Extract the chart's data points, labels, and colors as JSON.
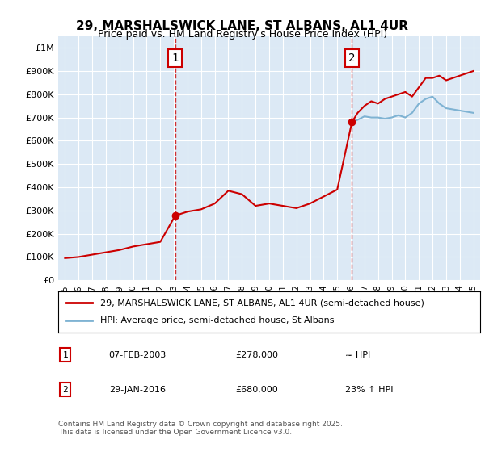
{
  "title": "29, MARSHALSWICK LANE, ST ALBANS, AL1 4UR",
  "subtitle": "Price paid vs. HM Land Registry's House Price Index (HPI)",
  "bg_color": "#dce9f5",
  "plot_bg_color": "#dce9f5",
  "ylim": [
    0,
    1050000
  ],
  "yticks": [
    0,
    100000,
    200000,
    300000,
    400000,
    500000,
    600000,
    700000,
    800000,
    900000,
    1000000
  ],
  "ytick_labels": [
    "£0",
    "£100K",
    "£200K",
    "£300K",
    "£400K",
    "£500K",
    "£600K",
    "£700K",
    "£800K",
    "£900K",
    "£1M"
  ],
  "xlim_start": 1995,
  "xlim_end": 2025.5,
  "xticks": [
    1995,
    1996,
    1997,
    1998,
    1999,
    2000,
    2001,
    2002,
    2003,
    2004,
    2005,
    2006,
    2007,
    2008,
    2009,
    2010,
    2011,
    2012,
    2013,
    2014,
    2015,
    2016,
    2017,
    2018,
    2019,
    2020,
    2021,
    2022,
    2023,
    2024,
    2025
  ],
  "transaction1_x": 2003.1,
  "transaction1_y": 278000,
  "transaction1_label": "1",
  "transaction2_x": 2016.08,
  "transaction2_y": 680000,
  "transaction2_label": "2",
  "red_line_x": [
    1995,
    1996,
    1997,
    1998,
    1999,
    2000,
    2001,
    2002,
    2003.1,
    2003.1,
    2004,
    2005,
    2006,
    2007,
    2008,
    2009,
    2010,
    2011,
    2012,
    2013,
    2014,
    2015,
    2016.08,
    2016.08,
    2016.5,
    2017,
    2017.5,
    2018,
    2018.5,
    2019,
    2019.5,
    2020,
    2020.5,
    2021,
    2021.5,
    2022,
    2022.5,
    2023,
    2023.5,
    2024,
    2024.5,
    2025
  ],
  "red_line_y": [
    95000,
    100000,
    110000,
    120000,
    130000,
    145000,
    155000,
    165000,
    278000,
    278000,
    295000,
    305000,
    330000,
    385000,
    370000,
    320000,
    330000,
    320000,
    310000,
    330000,
    360000,
    390000,
    680000,
    680000,
    720000,
    750000,
    770000,
    760000,
    780000,
    790000,
    800000,
    810000,
    790000,
    830000,
    870000,
    870000,
    880000,
    860000,
    870000,
    880000,
    890000,
    900000
  ],
  "hpi_line_x": [
    2016.08,
    2016.5,
    2017,
    2017.5,
    2018,
    2018.5,
    2019,
    2019.5,
    2020,
    2020.5,
    2021,
    2021.5,
    2022,
    2022.5,
    2023,
    2023.5,
    2024,
    2024.5,
    2025
  ],
  "hpi_line_y": [
    680000,
    690000,
    705000,
    700000,
    700000,
    695000,
    700000,
    710000,
    700000,
    720000,
    760000,
    780000,
    790000,
    760000,
    740000,
    735000,
    730000,
    725000,
    720000
  ],
  "vline1_x": 2003.1,
  "vline2_x": 2016.08,
  "legend_label_red": "29, MARSHALSWICK LANE, ST ALBANS, AL1 4UR (semi-detached house)",
  "legend_label_blue": "HPI: Average price, semi-detached house, St Albans",
  "annotation1_date": "07-FEB-2003",
  "annotation1_price": "£278,000",
  "annotation1_hpi": "≈ HPI",
  "annotation2_date": "29-JAN-2016",
  "annotation2_price": "£680,000",
  "annotation2_hpi": "23% ↑ HPI",
  "footer": "Contains HM Land Registry data © Crown copyright and database right 2025.\nThis data is licensed under the Open Government Licence v3.0.",
  "red_color": "#cc0000",
  "blue_color": "#7fb3d3",
  "vline_color": "#cc0000"
}
